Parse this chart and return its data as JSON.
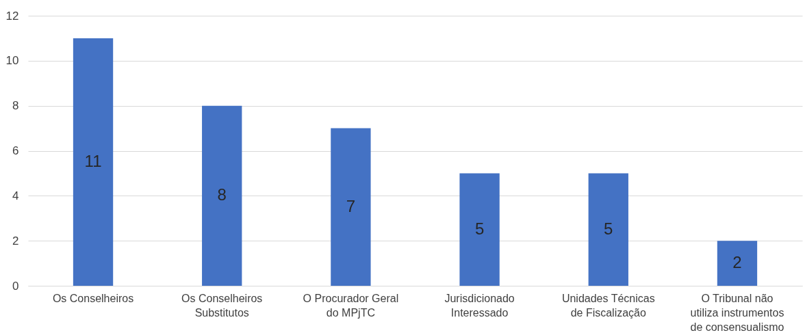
{
  "chart_data": {
    "type": "bar",
    "categories": [
      "Os Conselheiros",
      "Os Conselheiros Substitutos",
      "O Procurador Geral do MPjTC",
      "Jurisdicionado Interessado",
      "Unidades Técnicas de Fiscalização",
      "O Tribunal não utiliza instrumentos de consensualismo"
    ],
    "values": [
      11,
      8,
      7,
      5,
      5,
      2
    ],
    "color": "#4472c4",
    "data_labels": true,
    "ylim": [
      0,
      12
    ],
    "yticks": [
      0,
      2,
      4,
      6,
      8,
      10,
      12
    ],
    "grid": "y"
  }
}
